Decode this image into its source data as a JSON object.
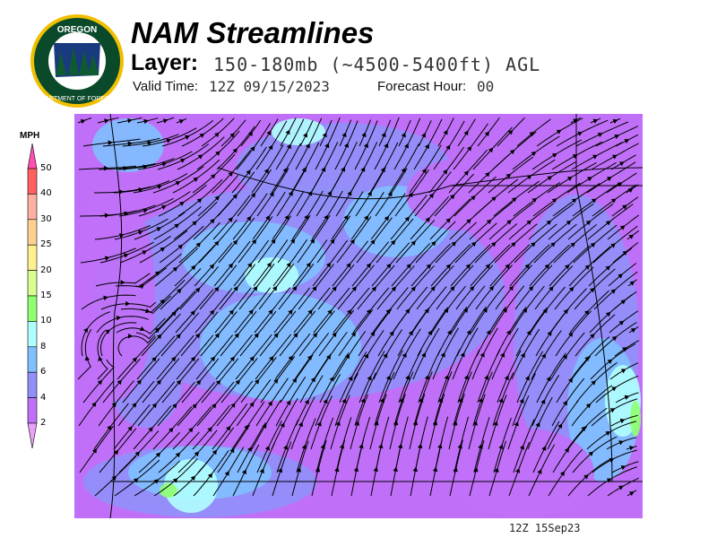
{
  "header": {
    "title": "NAM Streamlines",
    "layer_label": "Layer:",
    "layer_value": "150-180mb (~4500-5400ft) AGL",
    "valid_label": "Valid Time:",
    "valid_value": "12Z 09/15/2023",
    "forecast_label": "Forecast Hour:",
    "forecast_value": "00"
  },
  "logo": {
    "text_top": "OREGON",
    "text_bottom": "DEPARTMENT OF FORESTRY"
  },
  "legend": {
    "unit": "MPH",
    "ticks": [
      "50",
      "40",
      "30",
      "25",
      "20",
      "15",
      "10",
      "8",
      "6",
      "4",
      "2"
    ],
    "colors": [
      "#ff6060",
      "#ffb0a0",
      "#ffd090",
      "#fff090",
      "#d8ff90",
      "#90ff70",
      "#b0ffff",
      "#80c0ff",
      "#9090f8",
      "#c070f8"
    ],
    "top_arrow_color": "#ff50b0",
    "bottom_arrow_color": "#e8a0f8"
  },
  "footer": {
    "timestamp": "12Z 15Sep23"
  }
}
